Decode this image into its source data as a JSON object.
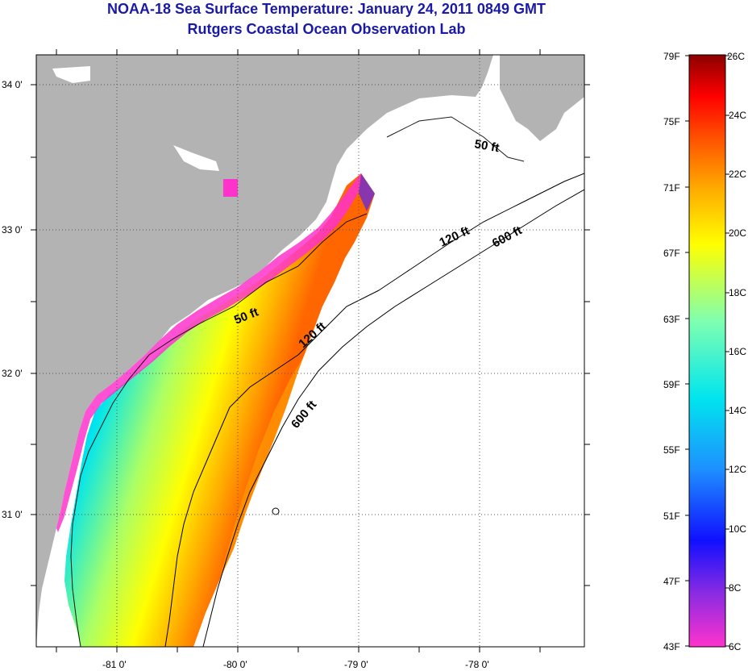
{
  "title": "NOAA-18 Sea Surface Temperature:  January 24, 2011 0849 GMT",
  "subtitle": "Rutgers Coastal Ocean Observation Lab",
  "map": {
    "lat_labels": [
      "34 0'",
      "33 0'",
      "32 0'",
      "31 0'"
    ],
    "lon_labels": [
      "-81 0'",
      "-80 0'",
      "-79 0'",
      "-78 0'"
    ],
    "depth_contours": [
      {
        "label": "50 ft",
        "instances": 2
      },
      {
        "label": "120 ft",
        "instances": 2
      },
      {
        "label": "600 ft",
        "instances": 2
      }
    ],
    "land_color": "#b3b3b3",
    "ocean_color": "#ffffff"
  },
  "colorbar": {
    "fahrenheit_labels": [
      "79F",
      "75F",
      "71F",
      "67F",
      "63F",
      "59F",
      "55F",
      "51F",
      "47F",
      "43F"
    ],
    "celsius_labels": [
      "26C",
      "24C",
      "22C",
      "20C",
      "18C",
      "16C",
      "14C",
      "12C",
      "10C",
      "8C",
      "6C"
    ],
    "range_f": [
      43,
      79
    ],
    "range_c": [
      6,
      26
    ],
    "colors_bottom_to_top": [
      "#ff33cc",
      "#8a2be2",
      "#1010ff",
      "#1e90ff",
      "#00e5ee",
      "#7fffb0",
      "#ffff00",
      "#ffa500",
      "#ff4500",
      "#ff0000",
      "#8b0000"
    ]
  }
}
